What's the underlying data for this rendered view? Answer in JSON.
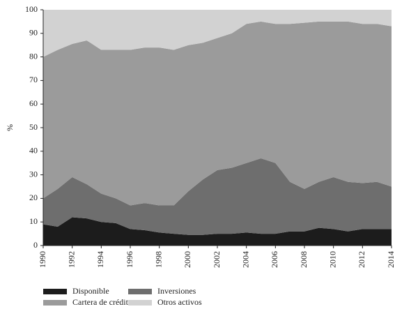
{
  "chart_data": {
    "type": "stacked-area",
    "ylabel": "%",
    "x": [
      1990,
      1991,
      1992,
      1993,
      1994,
      1995,
      1996,
      1997,
      1998,
      1999,
      2000,
      2001,
      2002,
      2003,
      2004,
      2005,
      2006,
      2007,
      2008,
      2009,
      2010,
      2011,
      2012,
      2013,
      2014
    ],
    "series": [
      {
        "name": "Disponible",
        "color": "#1c1c1c",
        "values": [
          9,
          8,
          12,
          11.5,
          10,
          9.5,
          7,
          6.5,
          5.5,
          5,
          4.5,
          4.5,
          5,
          5,
          5.5,
          5,
          5,
          6,
          6,
          7.5,
          7,
          6,
          7,
          7,
          7
        ]
      },
      {
        "name": "Inversiones",
        "color": "#6e6e6e",
        "values": [
          11,
          16,
          17,
          14.5,
          12,
          10.5,
          10,
          11.5,
          11.5,
          12,
          18.5,
          23.5,
          27,
          28,
          29.5,
          32,
          30,
          21,
          18,
          19.5,
          22,
          21,
          19.5,
          20,
          18
        ]
      },
      {
        "name": "Cartera de créditos",
        "color": "#9b9b9b",
        "values": [
          60,
          59,
          56.5,
          61,
          61,
          63,
          66,
          66,
          67,
          66,
          62,
          58,
          56,
          57,
          59,
          58,
          59,
          67,
          70.5,
          68,
          66,
          68,
          67.5,
          67,
          68
        ]
      },
      {
        "name": "Otros activos",
        "color": "#d2d2d2",
        "values": [
          20,
          17,
          14.5,
          13,
          17,
          17,
          17,
          16,
          16,
          17,
          15,
          14,
          12,
          10,
          6,
          5,
          6,
          6,
          5.5,
          5,
          5,
          5,
          6,
          6,
          7
        ]
      }
    ],
    "xlim": [
      1990,
      2014
    ],
    "xticks": [
      1990,
      1992,
      1994,
      1996,
      1998,
      2000,
      2002,
      2004,
      2006,
      2008,
      2010,
      2012,
      2014
    ],
    "ylim": [
      0,
      100
    ],
    "yticks": [
      0,
      10,
      20,
      30,
      40,
      50,
      60,
      70,
      80,
      90,
      100
    ]
  }
}
